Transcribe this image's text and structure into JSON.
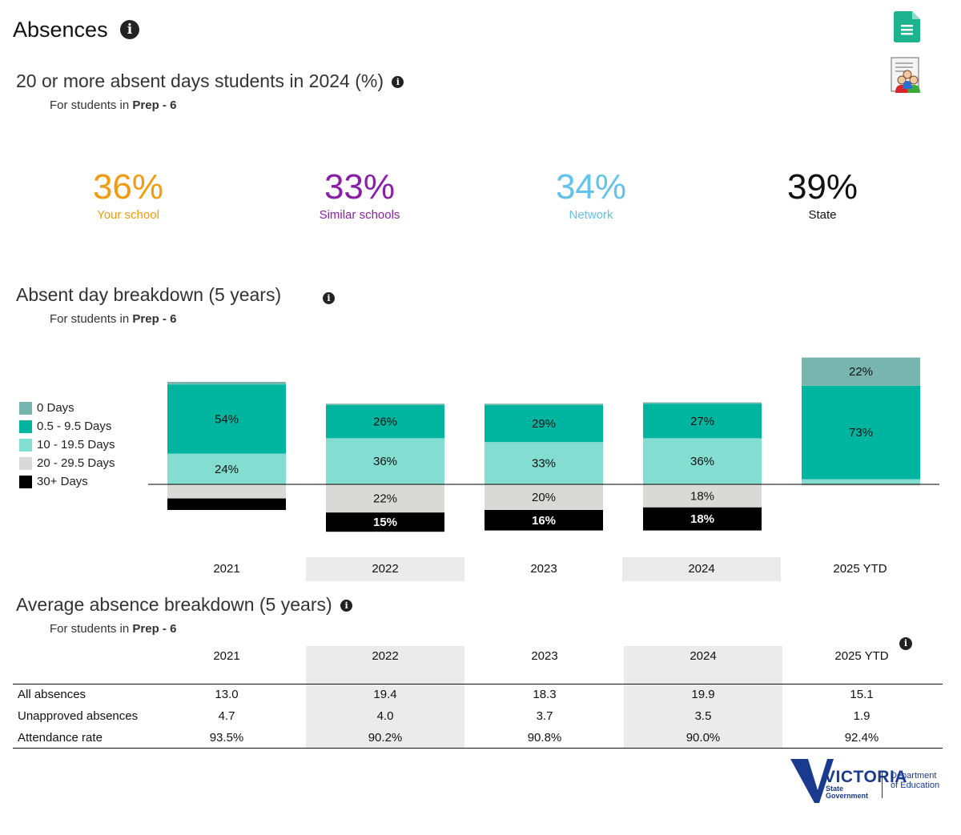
{
  "page": {
    "title": "Absences"
  },
  "icons": {
    "info": "info-icon",
    "document": "document-icon",
    "report": "report-icon"
  },
  "headline": {
    "title": "20 or more absent days students in 2024 (%)",
    "scope_prefix": "For students in",
    "scope_value": "Prep - 6",
    "stats": [
      {
        "value": "36%",
        "label": "Your school",
        "color": "#f29b0f"
      },
      {
        "value": "33%",
        "label": "Similar schools",
        "color": "#8a1ea8"
      },
      {
        "value": "34%",
        "label": "Network",
        "color": "#62c3ea"
      },
      {
        "value": "39%",
        "label": "State",
        "color": "#111111"
      }
    ]
  },
  "breakdown": {
    "title": "Absent day breakdown (5 years)",
    "scope_prefix": "For students in",
    "scope_value": "Prep - 6",
    "legend": [
      {
        "label": "0 Days",
        "color": "#79b5af"
      },
      {
        "label": "0.5 - 9.5 Days",
        "color": "#00b5a0"
      },
      {
        "label": "10 - 19.5 Days",
        "color": "#83ddd1"
      },
      {
        "label": "20 - 29.5 Days",
        "color": "#d9d9d6"
      },
      {
        "label": "30+ Days",
        "color": "#000000"
      }
    ]
  },
  "chart_data": {
    "type": "bar",
    "stacked": "diverging",
    "categories": [
      "2021",
      "2022",
      "2023",
      "2024",
      "2025 YTD"
    ],
    "series": [
      {
        "name": "0 Days",
        "color": "#79b5af",
        "values": [
          2,
          1,
          1,
          1,
          22
        ],
        "labels": [
          "",
          "",
          "",
          "",
          "22%"
        ]
      },
      {
        "name": "0.5 - 9.5 Days",
        "color": "#00b5a0",
        "values": [
          54,
          26,
          29,
          27,
          73
        ],
        "labels": [
          "54%",
          "26%",
          "29%",
          "27%",
          "73%"
        ]
      },
      {
        "name": "10 - 19.5 Days",
        "color": "#83ddd1",
        "values": [
          24,
          36,
          33,
          36,
          4
        ],
        "labels": [
          "24%",
          "36%",
          "33%",
          "36%",
          ""
        ]
      },
      {
        "name": "20 - 29.5 Days",
        "color": "#d9d9d6",
        "values": [
          11,
          22,
          20,
          18,
          1
        ],
        "labels": [
          "",
          "22%",
          "20%",
          "18%",
          ""
        ]
      },
      {
        "name": "30+ Days",
        "color": "#000000",
        "values": [
          9,
          15,
          16,
          18,
          0
        ],
        "labels": [
          "",
          "15%",
          "16%",
          "18%",
          ""
        ]
      }
    ],
    "above_baseline": [
      "0 Days",
      "0.5 - 9.5 Days",
      "10 - 19.5 Days"
    ],
    "below_baseline": [
      "20 - 29.5 Days",
      "30+ Days"
    ],
    "legend": "left"
  },
  "average": {
    "title": "Average absence breakdown (5 years)",
    "scope_prefix": "For students in",
    "scope_value": "Prep - 6",
    "columns": [
      "2021",
      "2022",
      "2023",
      "2024",
      "2025 YTD"
    ],
    "rows": [
      {
        "label": "All absences",
        "values": [
          "13.0",
          "19.4",
          "18.3",
          "19.9",
          "15.1"
        ]
      },
      {
        "label": "Unapproved absences",
        "values": [
          "4.7",
          "4.0",
          "3.7",
          "3.5",
          "1.9"
        ]
      },
      {
        "label": "Attendance rate",
        "values": [
          "93.5%",
          "90.2%",
          "90.8%",
          "90.0%",
          "92.4%"
        ]
      }
    ]
  },
  "footer": {
    "logo_word": "VICTORIA",
    "logo_sub1": "State",
    "logo_sub2": "Government",
    "dept_line1": "Department",
    "dept_line2": "of Education"
  }
}
